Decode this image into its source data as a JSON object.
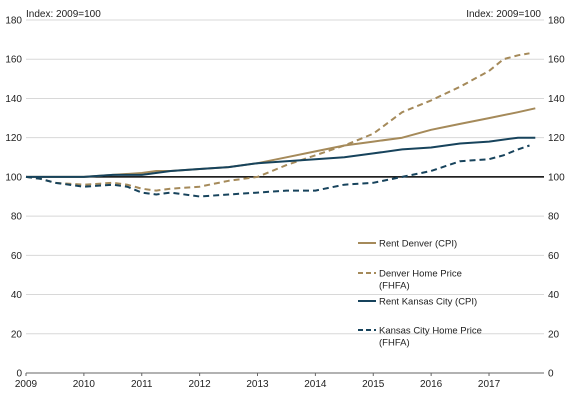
{
  "chart_data": {
    "type": "line",
    "left_axis_label": "Index: 2009=100",
    "right_axis_label": "Index: 2009=100",
    "ylim": [
      0,
      180
    ],
    "y_ticks": [
      "0",
      "20",
      "40",
      "60",
      "80",
      "100",
      "120",
      "140",
      "160",
      "180"
    ],
    "xlim": [
      2009,
      2017.95
    ],
    "x_ticks": [
      "2009",
      "2010",
      "2011",
      "2012",
      "2013",
      "2014",
      "2015",
      "2016",
      "2017"
    ],
    "reference_line": 100,
    "grid": "horizontal",
    "legend_position": "right",
    "colors": {
      "denver": "#a58a5a",
      "kansas": "#17435c",
      "reference": "#000000",
      "grid": "#d8d8d8"
    },
    "series": [
      {
        "name": [
          "Rent Denver (CPI)"
        ],
        "color": "#a58a5a",
        "dash": false,
        "x": [
          2009,
          2009.5,
          2010,
          2010.5,
          2011,
          2011.25,
          2011.5,
          2012,
          2012.5,
          2013,
          2013.5,
          2014,
          2014.5,
          2015,
          2015.5,
          2016,
          2016.5,
          2017,
          2017.5,
          2017.8
        ],
        "y": [
          100,
          100,
          100,
          101,
          102,
          103,
          103,
          104,
          105,
          107,
          110,
          113,
          116,
          118,
          120,
          124,
          127,
          130,
          133,
          135
        ]
      },
      {
        "name": [
          "Denver Home Price",
          "(FHFA)"
        ],
        "color": "#a58a5a",
        "dash": true,
        "x": [
          2009,
          2009.25,
          2009.5,
          2010,
          2010.5,
          2010.75,
          2011,
          2011.25,
          2011.5,
          2012,
          2012.5,
          2013,
          2013.5,
          2014,
          2014.5,
          2015,
          2015.5,
          2016,
          2016.5,
          2017,
          2017.25,
          2017.5,
          2017.7
        ],
        "y": [
          100,
          99,
          97,
          96,
          97,
          96,
          94,
          93,
          94,
          95,
          98,
          100,
          106,
          111,
          116,
          122,
          133,
          139,
          146,
          154,
          160,
          162,
          163
        ]
      },
      {
        "name": [
          "Rent Kansas City (CPI)"
        ],
        "color": "#17435c",
        "dash": false,
        "x": [
          2009,
          2009.5,
          2010,
          2010.5,
          2011,
          2011.5,
          2012,
          2012.5,
          2013,
          2013.5,
          2014,
          2014.5,
          2015,
          2015.5,
          2016,
          2016.5,
          2017,
          2017.5,
          2017.8
        ],
        "y": [
          100,
          100,
          100,
          101,
          101,
          103,
          104,
          105,
          107,
          108,
          109,
          110,
          112,
          114,
          115,
          117,
          118,
          120,
          120
        ]
      },
      {
        "name": [
          "Kansas City Home Price",
          "(FHFA)"
        ],
        "color": "#17435c",
        "dash": true,
        "x": [
          2009,
          2009.25,
          2009.5,
          2010,
          2010.5,
          2010.75,
          2011,
          2011.25,
          2011.5,
          2012,
          2012.5,
          2013,
          2013.5,
          2014,
          2014.5,
          2015,
          2015.5,
          2016,
          2016.5,
          2017,
          2017.25,
          2017.5,
          2017.7
        ],
        "y": [
          100,
          99,
          97,
          95,
          96,
          95,
          92,
          91,
          92,
          90,
          91,
          92,
          93,
          93,
          96,
          97,
          100,
          103,
          108,
          109,
          111,
          114,
          116
        ]
      }
    ]
  }
}
